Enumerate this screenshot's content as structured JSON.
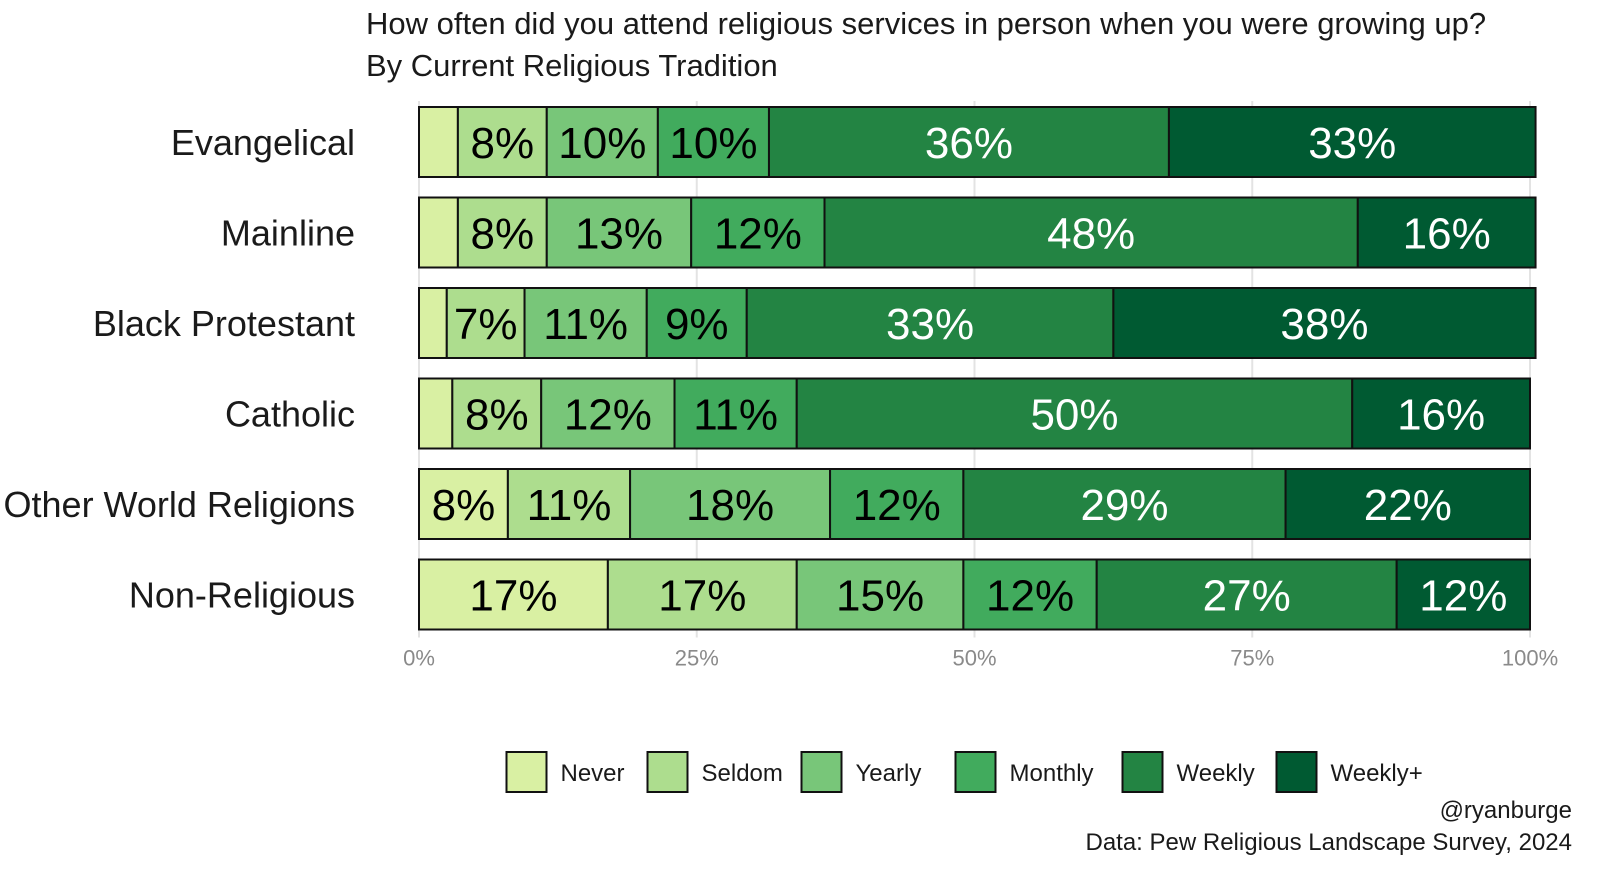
{
  "chart_data": {
    "type": "bar",
    "orientation": "horizontal-stacked-100",
    "title": "How often did you attend religious services in person when you were growing up?",
    "subtitle": "By Current Religious Tradition",
    "categories": [
      "Evangelical",
      "Mainline",
      "Black Protestant",
      "Catholic",
      "Other World Religions",
      "Non-Religious"
    ],
    "series": [
      {
        "name": "Never",
        "color": "#d9f0a3",
        "values": [
          3.5,
          3.5,
          2.5,
          3,
          8,
          17
        ]
      },
      {
        "name": "Seldom",
        "color": "#addd8e",
        "values": [
          8,
          8,
          7,
          8,
          11,
          17
        ]
      },
      {
        "name": "Yearly",
        "color": "#78c679",
        "values": [
          10,
          13,
          11,
          12,
          18,
          15
        ]
      },
      {
        "name": "Monthly",
        "color": "#41ab5d",
        "values": [
          10,
          12,
          9,
          11,
          12,
          12
        ]
      },
      {
        "name": "Weekly",
        "color": "#238443",
        "values": [
          36,
          48,
          33,
          50,
          29,
          27
        ]
      },
      {
        "name": "Weekly+",
        "color": "#005a32",
        "values": [
          33,
          16,
          38,
          16,
          22,
          12
        ]
      }
    ],
    "data_labels": [
      [
        "",
        "8%",
        "10%",
        "10%",
        "36%",
        "33%"
      ],
      [
        "",
        "8%",
        "13%",
        "12%",
        "48%",
        "16%"
      ],
      [
        "",
        "7%",
        "11%",
        "9%",
        "33%",
        "38%"
      ],
      [
        "",
        "8%",
        "12%",
        "11%",
        "50%",
        "16%"
      ],
      [
        "8%",
        "11%",
        "18%",
        "12%",
        "29%",
        "22%"
      ],
      [
        "17%",
        "17%",
        "15%",
        "12%",
        "27%",
        "12%"
      ]
    ],
    "xlim": [
      0,
      100
    ],
    "xticks": [
      0,
      25,
      50,
      75,
      100
    ],
    "xtick_labels": [
      "0%",
      "25%",
      "50%",
      "75%",
      "100%"
    ],
    "xlabel": "",
    "ylabel": "",
    "grid": true,
    "legend_position": "bottom",
    "label_colors": {
      "dark": "#000000",
      "light": "#ffffff"
    }
  },
  "caption": {
    "handle": "@ryanburge",
    "source": "Data: Pew Religious Landscape Survey, 2024"
  }
}
